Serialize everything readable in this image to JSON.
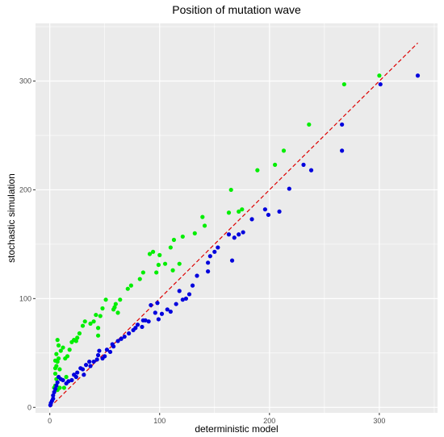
{
  "chart_data": {
    "type": "scatter",
    "title": "Position of mutation wave",
    "xlabel": "deterministic model",
    "ylabel": "stochastic simulation",
    "xlim": [
      -13,
      353
    ],
    "ylim": [
      -5,
      353
    ],
    "x_ticks": [
      0,
      100,
      200,
      300
    ],
    "y_ticks": [
      0,
      100,
      200,
      300
    ],
    "grid": true,
    "panel_background": "#EBEBEB",
    "grid_color": "#FFFFFF",
    "reference_line": {
      "type": "identity",
      "color": "#DD0000",
      "style": "dashed",
      "x_range": [
        0,
        335
      ]
    },
    "series": [
      {
        "color": "#00EE00",
        "points": [
          [
            300,
            305
          ],
          [
            268,
            297
          ],
          [
            236,
            260
          ],
          [
            213,
            236
          ],
          [
            205,
            223
          ],
          [
            189,
            218
          ],
          [
            175,
            182
          ],
          [
            172,
            180
          ],
          [
            165,
            200
          ],
          [
            163,
            179
          ],
          [
            141,
            167
          ],
          [
            139,
            175
          ],
          [
            132,
            160
          ],
          [
            121,
            157
          ],
          [
            113,
            154
          ],
          [
            110,
            147
          ],
          [
            100,
            140
          ],
          [
            94,
            143
          ],
          [
            91,
            141
          ],
          [
            99,
            131
          ],
          [
            105,
            132
          ],
          [
            112,
            126
          ],
          [
            118,
            132
          ],
          [
            97,
            124
          ],
          [
            85,
            124
          ],
          [
            82,
            118
          ],
          [
            74,
            112
          ],
          [
            71,
            109
          ],
          [
            64,
            99
          ],
          [
            60,
            95
          ],
          [
            58,
            90
          ],
          [
            62,
            87
          ],
          [
            59,
            92
          ],
          [
            51,
            99
          ],
          [
            48,
            91
          ],
          [
            46,
            84
          ],
          [
            42,
            85
          ],
          [
            44,
            73
          ],
          [
            44,
            66
          ],
          [
            40,
            79
          ],
          [
            37,
            77
          ],
          [
            32,
            79
          ],
          [
            30,
            75
          ],
          [
            27,
            68
          ],
          [
            25,
            64
          ],
          [
            22,
            62
          ],
          [
            20,
            60
          ],
          [
            24,
            61
          ],
          [
            18,
            53
          ],
          [
            16,
            47
          ],
          [
            14,
            45
          ],
          [
            12,
            55
          ],
          [
            10,
            52
          ],
          [
            8,
            57
          ],
          [
            7,
            62
          ],
          [
            6,
            49
          ],
          [
            5,
            43
          ],
          [
            7,
            42
          ],
          [
            6,
            38
          ],
          [
            5,
            36
          ],
          [
            5,
            31
          ],
          [
            6,
            26
          ],
          [
            5,
            20
          ],
          [
            4,
            18
          ],
          [
            7,
            16
          ],
          [
            9,
            18
          ],
          [
            13,
            18
          ],
          [
            15,
            28
          ],
          [
            8,
            45
          ],
          [
            9,
            35
          ]
        ]
      },
      {
        "color": "#0000DD",
        "points": [
          [
            335,
            305
          ],
          [
            301,
            297
          ],
          [
            266,
            260
          ],
          [
            266,
            236
          ],
          [
            238,
            218
          ],
          [
            231,
            223
          ],
          [
            218,
            201
          ],
          [
            209,
            180
          ],
          [
            199,
            177
          ],
          [
            196,
            182
          ],
          [
            184,
            173
          ],
          [
            176,
            161
          ],
          [
            172,
            159
          ],
          [
            168,
            156
          ],
          [
            163,
            159
          ],
          [
            166,
            135
          ],
          [
            153,
            147
          ],
          [
            150,
            143
          ],
          [
            146,
            139
          ],
          [
            144,
            125
          ],
          [
            144,
            133
          ],
          [
            134,
            121
          ],
          [
            130,
            112
          ],
          [
            127,
            104
          ],
          [
            124,
            100
          ],
          [
            121,
            99
          ],
          [
            118,
            107
          ],
          [
            115,
            95
          ],
          [
            110,
            88
          ],
          [
            107,
            90
          ],
          [
            102,
            86
          ],
          [
            99,
            81
          ],
          [
            96,
            87
          ],
          [
            92,
            94
          ],
          [
            90,
            79
          ],
          [
            87,
            80
          ],
          [
            84,
            74
          ],
          [
            80,
            76
          ],
          [
            78,
            73
          ],
          [
            76,
            71
          ],
          [
            72,
            68
          ],
          [
            68,
            65
          ],
          [
            65,
            63
          ],
          [
            62,
            61
          ],
          [
            58,
            56
          ],
          [
            55,
            51
          ],
          [
            52,
            53
          ],
          [
            50,
            47
          ],
          [
            48,
            45
          ],
          [
            44,
            48
          ],
          [
            43,
            44
          ],
          [
            40,
            42
          ],
          [
            37,
            38
          ],
          [
            33,
            39
          ],
          [
            30,
            35
          ],
          [
            28,
            36
          ],
          [
            25,
            32
          ],
          [
            22,
            30
          ],
          [
            20,
            25
          ],
          [
            17,
            24
          ],
          [
            15,
            22
          ],
          [
            12,
            25
          ],
          [
            10,
            26
          ],
          [
            8,
            28
          ],
          [
            7,
            23
          ],
          [
            6,
            20
          ],
          [
            5,
            17
          ],
          [
            4,
            14
          ],
          [
            3,
            11
          ],
          [
            3,
            8
          ],
          [
            2,
            6
          ],
          [
            1,
            4
          ],
          [
            0.5,
            2
          ],
          [
            24,
            28
          ],
          [
            31,
            30
          ],
          [
            36,
            42
          ],
          [
            45,
            52
          ],
          [
            57,
            58
          ],
          [
            85,
            80
          ],
          [
            98,
            96
          ]
        ]
      }
    ]
  }
}
